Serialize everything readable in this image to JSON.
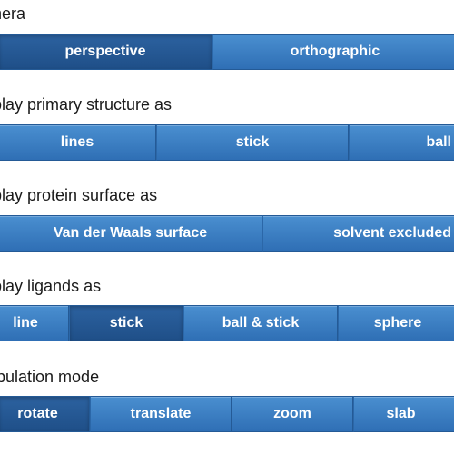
{
  "sections": [
    {
      "label": "nera",
      "buttons": [
        "perspective",
        "orthographic"
      ],
      "selected": "perspective"
    },
    {
      "label": "play primary structure as",
      "buttons": [
        "lines",
        "stick",
        "ball"
      ],
      "selected": null
    },
    {
      "label": "play protein surface as",
      "buttons": [
        "Van der Waals surface",
        "solvent excluded"
      ],
      "selected": null
    },
    {
      "label": "play ligands as",
      "buttons": [
        "line",
        "stick",
        "ball & stick",
        "sphere"
      ],
      "selected": "stick"
    },
    {
      "label": "ipulation mode",
      "buttons": [
        "rotate",
        "translate",
        "zoom",
        "slab"
      ],
      "selected": "rotate"
    }
  ],
  "colors": {
    "button_top": "#4a8fd0",
    "button_bottom": "#2f6fb5",
    "button_active": "#1f4f88",
    "button_text": "#ffffff",
    "label_text": "#1a1a1a"
  }
}
